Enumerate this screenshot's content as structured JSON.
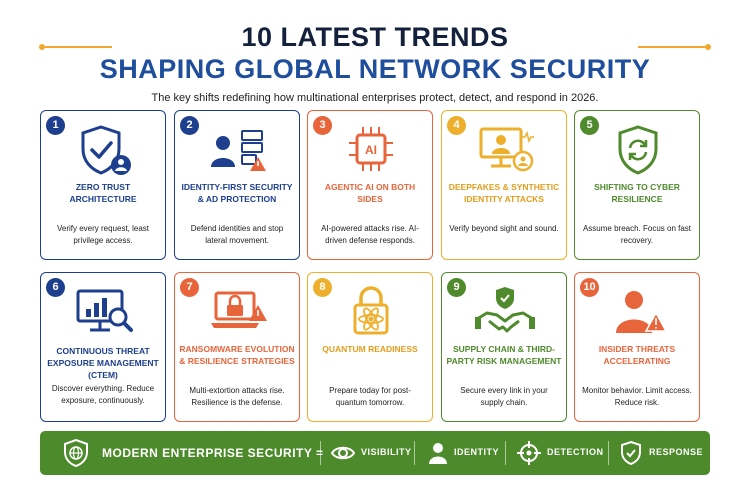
{
  "header": {
    "title_line1": "10 LATEST TRENDS",
    "title_line2": "SHAPING GLOBAL NETWORK SECURITY",
    "subtitle": "The key shifts redefining how multinational enterprises protect, detect, and respond in 2026."
  },
  "colors": {
    "navy": "#1d3f8e",
    "orange": "#e8643a",
    "yellow": "#eeb02c",
    "green": "#4f8a2c"
  },
  "trends": [
    {
      "num": "1",
      "title": "ZERO TRUST ARCHITECTURE",
      "desc": "Verify every request, least privilege access.",
      "icon": "shield-check-user-icon"
    },
    {
      "num": "2",
      "title": "IDENTITY-FIRST SECURITY & AD PROTECTION",
      "desc": "Defend identities and stop lateral movement.",
      "icon": "user-server-alert-icon"
    },
    {
      "num": "3",
      "title": "AGENTIC AI ON BOTH SIDES",
      "desc": "AI-powered attacks rise. AI-driven defense responds.",
      "icon": "ai-chip-icon"
    },
    {
      "num": "4",
      "title": "DEEPFAKES & SYNTHETIC IDENTITY ATTACKS",
      "desc": "Verify beyond sight and sound.",
      "icon": "monitor-user-icon"
    },
    {
      "num": "5",
      "title": "SHIFTING TO CYBER RESILIENCE",
      "desc": "Assume breach. Focus on fast recovery.",
      "icon": "shield-refresh-icon"
    },
    {
      "num": "6",
      "title": "CONTINUOUS THREAT EXPOSURE MANAGEMENT (CTEM)",
      "desc": "Discover everything. Reduce exposure, continuously.",
      "icon": "monitor-magnifier-icon"
    },
    {
      "num": "7",
      "title": "RANSOMWARE EVOLUTION & RESILIENCE STRATEGIES",
      "desc": "Multi-extortion attacks rise. Resilience is the defense.",
      "icon": "laptop-lock-alert-icon"
    },
    {
      "num": "8",
      "title": "QUANTUM READINESS",
      "desc": "Prepare today for post-quantum tomorrow.",
      "icon": "quantum-lock-icon"
    },
    {
      "num": "9",
      "title": "SUPPLY CHAIN & THIRD-PARTY RISK MANAGEMENT",
      "desc": "Secure every link in your supply chain.",
      "icon": "handshake-shield-icon"
    },
    {
      "num": "10",
      "title": "INSIDER THREATS ACCELERATING",
      "desc": "Monitor behavior. Limit access. Reduce risk.",
      "icon": "user-alert-icon"
    }
  ],
  "banner": {
    "text": "MODERN ENTERPRISE SECURITY =",
    "pillars": [
      {
        "label": "VISIBILITY",
        "icon": "eye-icon"
      },
      {
        "label": "IDENTITY",
        "icon": "person-icon"
      },
      {
        "label": "DETECTION",
        "icon": "crosshair-icon"
      },
      {
        "label": "RESPONSE",
        "icon": "shield-check-icon"
      }
    ]
  }
}
